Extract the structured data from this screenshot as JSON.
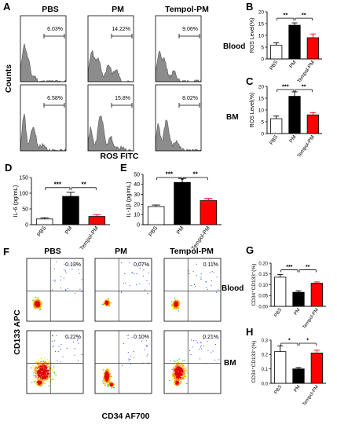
{
  "panel_letters": [
    "A",
    "B",
    "C",
    "D",
    "E",
    "F",
    "G",
    "H"
  ],
  "flow_A": {
    "columns": [
      "PBS",
      "PM",
      "Tempol-PM"
    ],
    "rows": [
      "Blood",
      "BM"
    ],
    "y_label": "Counts",
    "x_label": "ROS FITC",
    "percents": [
      [
        "6.03%",
        "14.22%",
        "9.06%"
      ],
      [
        "6.58%",
        "15.8%",
        "8.02%"
      ]
    ]
  },
  "flow_F": {
    "columns": [
      "PBS",
      "PM",
      "Tempol-PM"
    ],
    "rows": [
      "Blood",
      "BM"
    ],
    "y_label": "CD133 APC",
    "x_label": "CD34 AF700",
    "percents": [
      [
        "0.13%",
        "0.07%",
        "0.11%"
      ],
      [
        "0.22%",
        "0.10%",
        "0.21%"
      ]
    ]
  },
  "colors": {
    "PBS": "#ffffff",
    "PM": "#000000",
    "Tempol-PM": "#ff0000",
    "histogram": "#8c8c8c"
  },
  "chart_data": [
    {
      "panel": "B",
      "type": "bar",
      "categories": [
        "PBS",
        "PM",
        "Tempol-PM"
      ],
      "values": [
        5.8,
        14.3,
        9.0
      ],
      "errors": [
        1.0,
        1.0,
        1.6
      ],
      "ylabel": "ROS Level(%)",
      "ylim": [
        0,
        20
      ],
      "yticks": [
        "0",
        "5",
        "10",
        "15",
        "20"
      ],
      "significance": [
        {
          "pair": [
            0,
            1
          ],
          "label": "**"
        },
        {
          "pair": [
            1,
            2
          ],
          "label": "**"
        }
      ]
    },
    {
      "panel": "C",
      "type": "bar",
      "categories": [
        "PBS",
        "PM",
        "Tempol-PM"
      ],
      "values": [
        6.3,
        15.8,
        7.9
      ],
      "errors": [
        1.1,
        1.9,
        1.0
      ],
      "ylabel": "ROS Level(%)",
      "ylim": [
        0,
        20
      ],
      "yticks": [
        "0",
        "5",
        "10",
        "15",
        "20"
      ],
      "significance": [
        {
          "pair": [
            0,
            1
          ],
          "label": "***"
        },
        {
          "pair": [
            1,
            2
          ],
          "label": "**"
        }
      ]
    },
    {
      "panel": "D",
      "type": "bar",
      "categories": [
        "PBS",
        "PM",
        "Tempol-PM"
      ],
      "values": [
        18,
        90,
        26
      ],
      "errors": [
        4,
        13,
        6
      ],
      "ylabel": "IL-6 (pg/mL)",
      "ylim": [
        0,
        150
      ],
      "yticks": [
        "0",
        "50",
        "100",
        "150"
      ],
      "significance": [
        {
          "pair": [
            0,
            1
          ],
          "label": "***"
        },
        {
          "pair": [
            1,
            2
          ],
          "label": "**"
        }
      ]
    },
    {
      "panel": "E",
      "type": "bar",
      "categories": [
        "PBS",
        "PM",
        "Tempol-PM"
      ],
      "values": [
        18,
        42,
        24
      ],
      "errors": [
        1.5,
        4,
        2
      ],
      "ylabel": "IL-1β (pg/mL)",
      "ylim": [
        0,
        50
      ],
      "yticks": [
        "0",
        "10",
        "20",
        "30",
        "40",
        "50"
      ],
      "significance": [
        {
          "pair": [
            0,
            1
          ],
          "label": "***"
        },
        {
          "pair": [
            1,
            2
          ],
          "label": "**"
        }
      ]
    },
    {
      "panel": "G",
      "type": "bar",
      "categories": [
        "PBS",
        "PM",
        "Tempol-PM"
      ],
      "values": [
        0.135,
        0.065,
        0.107
      ],
      "errors": [
        0.012,
        0.007,
        0.006
      ],
      "ylabel": "CD34⁺CD133⁺(%)",
      "ylim": [
        0,
        0.2
      ],
      "yticks": [
        "0.00",
        "0.05",
        "0.10",
        "0.15",
        "0.20"
      ],
      "significance": [
        {
          "pair": [
            0,
            1
          ],
          "label": "***"
        },
        {
          "pair": [
            1,
            2
          ],
          "label": "**"
        }
      ]
    },
    {
      "panel": "H",
      "type": "bar",
      "categories": [
        "PBS",
        "PM",
        "Tempol-PM"
      ],
      "values": [
        0.22,
        0.1,
        0.21
      ],
      "errors": [
        0.04,
        0.01,
        0.02
      ],
      "ylabel": "CD34⁺CD133⁺(%)",
      "ylim": [
        0,
        0.3
      ],
      "yticks": [
        "0.0",
        "0.1",
        "0.2",
        "0.3"
      ],
      "significance": [
        {
          "pair": [
            0,
            1
          ],
          "label": "*"
        },
        {
          "pair": [
            1,
            2
          ],
          "label": "*"
        }
      ]
    }
  ]
}
